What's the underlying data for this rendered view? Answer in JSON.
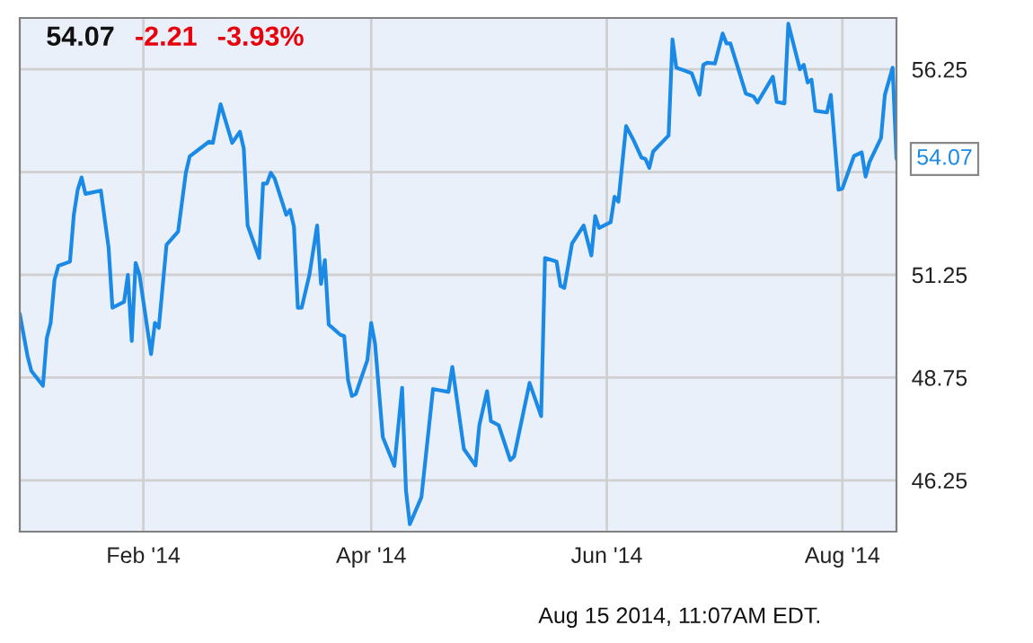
{
  "chart_data": {
    "type": "line",
    "title": "54.07",
    "annotations": [
      "-2.21",
      "-3.93%",
      "Aug 15 2014, 11:07AM EDT.",
      {
        "text": "54.07",
        "x": "2014-08-15",
        "y": 54.07
      }
    ],
    "x": [
      "2013-12-31",
      "2014-01-02",
      "2014-01-03",
      "2014-01-06",
      "2014-01-07",
      "2014-01-08",
      "2014-01-09",
      "2014-01-10",
      "2014-01-13",
      "2014-01-14",
      "2014-01-15",
      "2014-01-16",
      "2014-01-17",
      "2014-01-21",
      "2014-01-23",
      "2014-01-24",
      "2014-01-27",
      "2014-01-28",
      "2014-01-29",
      "2014-01-30",
      "2014-01-31",
      "2014-02-03",
      "2014-02-04",
      "2014-02-05",
      "2014-02-07",
      "2014-02-10",
      "2014-02-12",
      "2014-02-13",
      "2014-02-18",
      "2014-02-19",
      "2014-02-21",
      "2014-02-24",
      "2014-02-26",
      "2014-02-27",
      "2014-02-28",
      "2014-03-03",
      "2014-03-04",
      "2014-03-05",
      "2014-03-06",
      "2014-03-07",
      "2014-03-10",
      "2014-03-11",
      "2014-03-12",
      "2014-03-13",
      "2014-03-14",
      "2014-03-16",
      "2014-03-18",
      "2014-03-19",
      "2014-03-20",
      "2014-03-21",
      "2014-03-24",
      "2014-03-25",
      "2014-03-26",
      "2014-03-27",
      "2014-03-28",
      "2014-03-31",
      "2014-04-01",
      "2014-04-02",
      "2014-04-04",
      "2014-04-07",
      "2014-04-09",
      "2014-04-10",
      "2014-04-11",
      "2014-04-14",
      "2014-04-17",
      "2014-04-21",
      "2014-04-22",
      "2014-04-25",
      "2014-04-28",
      "2014-04-29",
      "2014-05-01",
      "2014-05-02",
      "2014-05-04",
      "2014-05-07",
      "2014-05-08",
      "2014-05-12",
      "2014-05-15",
      "2014-05-16",
      "2014-05-19",
      "2014-05-20",
      "2014-05-21",
      "2014-05-23",
      "2014-05-26",
      "2014-05-28",
      "2014-05-29",
      "2014-05-30",
      "2014-06-02",
      "2014-06-03",
      "2014-06-04",
      "2014-06-06",
      "2014-06-08",
      "2014-06-10",
      "2014-06-11",
      "2014-06-12",
      "2014-06-13",
      "2014-06-17",
      "2014-06-18",
      "2014-06-19",
      "2014-06-22",
      "2014-06-23",
      "2014-06-25",
      "2014-06-26",
      "2014-06-27",
      "2014-06-29",
      "2014-07-01",
      "2014-07-02",
      "2014-07-03",
      "2014-07-07",
      "2014-07-09",
      "2014-07-10",
      "2014-07-14",
      "2014-07-15",
      "2014-07-17",
      "2014-07-18",
      "2014-07-21",
      "2014-07-22",
      "2014-07-23",
      "2014-07-24",
      "2014-07-25",
      "2014-07-28",
      "2014-07-29",
      "2014-07-31",
      "2014-08-01",
      "2014-08-04",
      "2014-08-06",
      "2014-08-07",
      "2014-08-08",
      "2014-08-11",
      "2014-08-12",
      "2014-08-14",
      "2014-08-15"
    ],
    "series": [
      {
        "color": "#1a8ae6",
        "values": [
          50.3,
          49.28,
          48.91,
          48.55,
          49.71,
          50.08,
          51.13,
          51.47,
          51.57,
          52.71,
          53.32,
          53.62,
          53.22,
          53.3,
          51.91,
          50.45,
          50.59,
          51.25,
          49.64,
          51.54,
          51.25,
          49.32,
          50.08,
          49.96,
          51.98,
          52.3,
          53.73,
          54.13,
          54.49,
          54.46,
          55.4,
          54.46,
          54.73,
          54.32,
          52.45,
          51.66,
          53.47,
          53.47,
          53.73,
          53.59,
          52.71,
          52.83,
          52.42,
          50.45,
          50.45,
          51.25,
          52.45,
          51.03,
          51.61,
          50.04,
          49.79,
          49.76,
          48.69,
          48.3,
          48.35,
          49.17,
          50.08,
          49.57,
          47.3,
          46.6,
          48.5,
          46.0,
          45.18,
          45.84,
          48.47,
          48.4,
          49.01,
          47.01,
          46.61,
          47.59,
          48.42,
          47.69,
          47.59,
          46.74,
          46.83,
          48.62,
          47.81,
          51.66,
          51.57,
          50.98,
          50.93,
          52.01,
          52.45,
          51.72,
          52.68,
          52.39,
          52.53,
          53.15,
          53.03,
          54.87,
          54.51,
          54.1,
          54.07,
          53.85,
          54.25,
          54.64,
          56.98,
          56.29,
          56.19,
          56.15,
          55.63,
          56.36,
          56.41,
          56.39,
          57.12,
          56.88,
          56.88,
          55.66,
          55.59,
          55.44,
          56.07,
          55.46,
          55.42,
          57.36,
          56.25,
          56.36,
          55.93,
          56.0,
          55.24,
          55.2,
          55.63,
          53.32,
          53.35,
          54.14,
          54.23,
          53.64,
          53.99,
          54.58,
          55.63,
          56.29,
          54.07
        ]
      }
    ],
    "xlim": [
      "2013-12-31",
      "2014-08-15"
    ],
    "xticks": [
      {
        "value": "2014-02-01",
        "label": "Feb '14"
      },
      {
        "value": "2014-04-01",
        "label": "Apr '14"
      },
      {
        "value": "2014-06-01",
        "label": "Jun '14"
      },
      {
        "value": "2014-08-01",
        "label": "Aug '14"
      }
    ],
    "ylim": [
      45.0,
      57.5
    ],
    "yticks": [
      46.25,
      48.75,
      51.25,
      {
        "value": 53.75,
        "label": null
      },
      56.25
    ],
    "grid": true,
    "legend": false,
    "marker": "none",
    "line_style": "solid"
  }
}
